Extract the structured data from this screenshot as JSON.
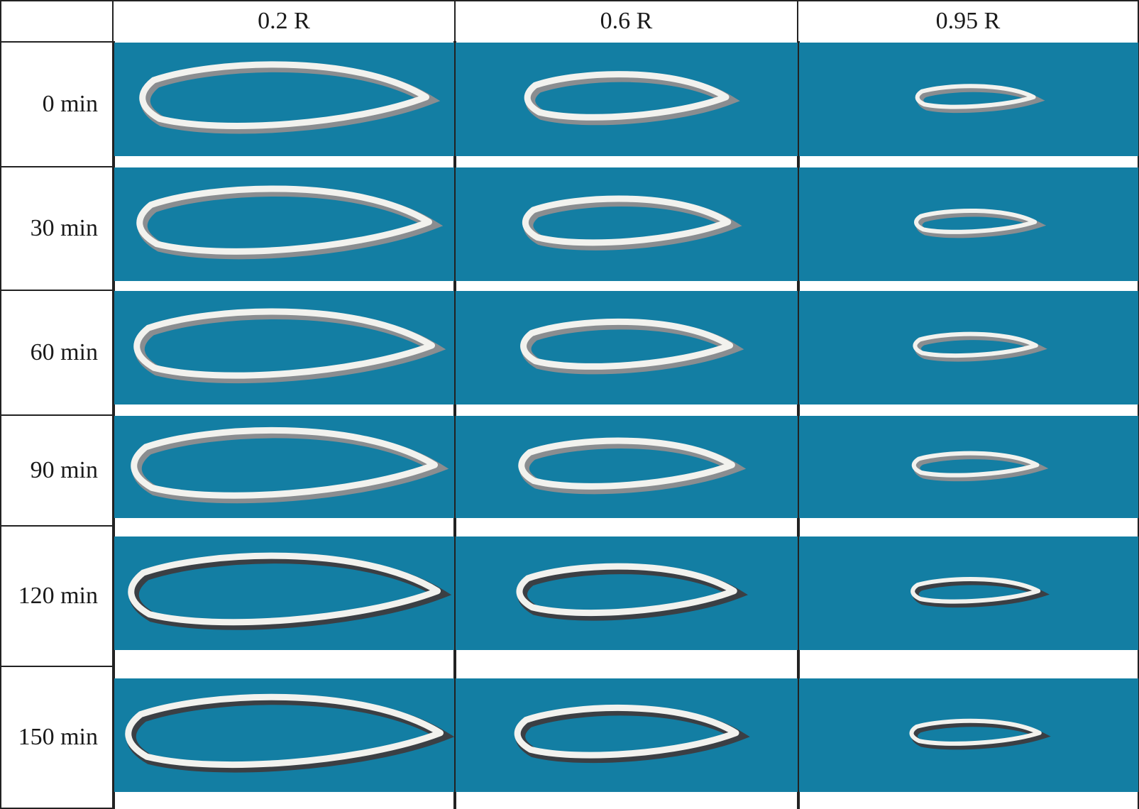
{
  "table": {
    "corner": "",
    "columns": [
      "0.2 R",
      "0.6 R",
      "0.95 R"
    ],
    "rows": [
      "0 min",
      "30 min",
      "60 min",
      "90 min",
      "120 min",
      "150 min"
    ]
  },
  "colors": {
    "photo_background": "#137ea3",
    "ice_light": "#f2f2ee",
    "ice_shadow": "#8a8d90",
    "ice_dark": "#3b3f44",
    "grid_line": "#222222"
  }
}
